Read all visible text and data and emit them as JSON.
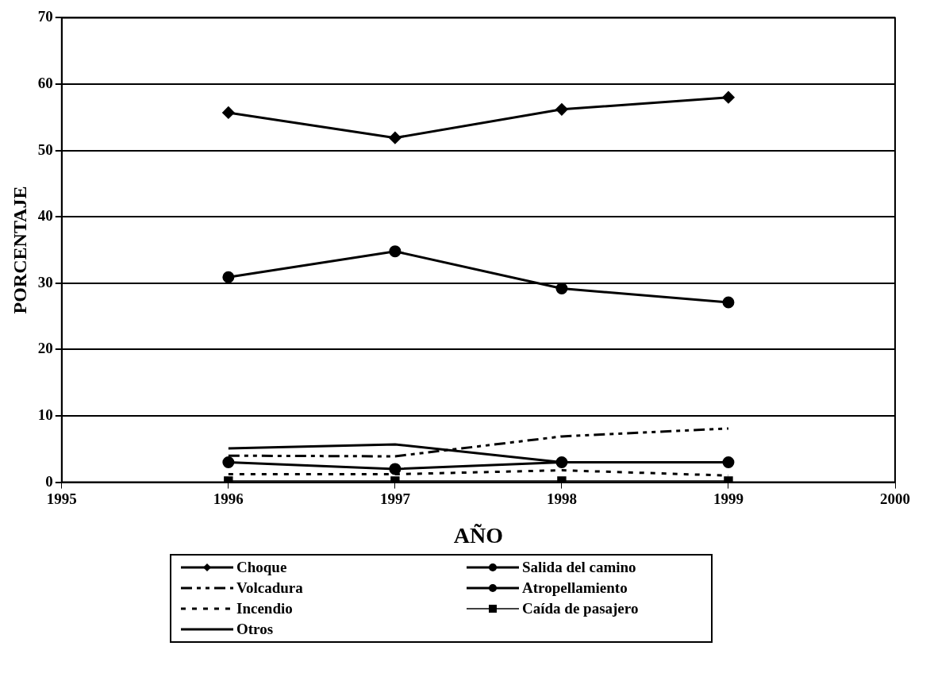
{
  "chart_data": {
    "type": "line",
    "xlabel": "AÑO",
    "ylabel": "PORCENTAJE",
    "x": [
      1996,
      1997,
      1998,
      1999
    ],
    "xlim": [
      1995,
      2000
    ],
    "xticks": [
      1995,
      1996,
      1997,
      1998,
      1999,
      2000
    ],
    "ylim": [
      0,
      70
    ],
    "yticks": [
      0,
      10,
      20,
      30,
      40,
      50,
      60,
      70
    ],
    "grid": "y",
    "legend": "bottom",
    "series": [
      {
        "name": "Choque",
        "color": "#000000",
        "marker": "diamond",
        "line_style": "solid",
        "values": [
          55.7,
          51.9,
          56.2,
          58.0
        ]
      },
      {
        "name": "Salida del camino",
        "color": "#000000",
        "marker": "circle",
        "line_style": "solid",
        "values": [
          30.9,
          34.8,
          29.2,
          27.1
        ]
      },
      {
        "name": "Volcadura",
        "color": "#000000",
        "marker": "none",
        "line_style": "dashed",
        "values": [
          4.0,
          3.9,
          6.9,
          8.1
        ]
      },
      {
        "name": "Atropellamiento",
        "color": "#000000",
        "marker": "circle",
        "line_style": "solid",
        "values": [
          3.0,
          2.0,
          3.0,
          3.0
        ]
      },
      {
        "name": "Incendio",
        "color": "#000000",
        "marker": "none",
        "line_style": "dotted",
        "values": [
          1.2,
          1.2,
          1.8,
          1.0
        ]
      },
      {
        "name": "Caída de pasajero",
        "color": "#000000",
        "marker": "square",
        "line_style": "solid",
        "values": [
          0.2,
          0.2,
          0.2,
          0.2
        ]
      },
      {
        "name": "Otros",
        "color": "#000000",
        "marker": "none",
        "line_style": "solid",
        "values": [
          5.1,
          5.7,
          3.0,
          3.0
        ]
      }
    ]
  }
}
